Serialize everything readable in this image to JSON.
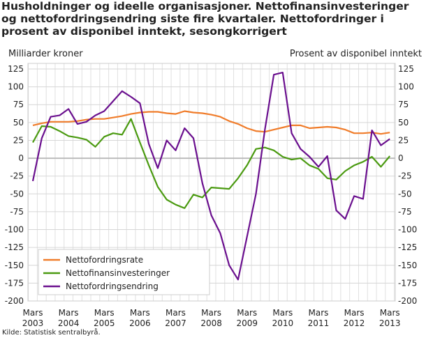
{
  "chart_data": {
    "type": "line",
    "title": "Husholdninger og ideelle organisasjoner. Nettofinansinvesteringer og nettofordringsendring siste fire kvartaler. Nettofordringer i prosent av disponibel inntekt, sesongkorrigert",
    "ylabel_left": "Milliarder kroner",
    "ylabel_right": "Prosent av disponibel inntekt",
    "ylim": [
      -200,
      125
    ],
    "yticks": [
      125,
      100,
      75,
      50,
      25,
      0,
      -25,
      -50,
      -75,
      -100,
      -125,
      -150,
      -175,
      -200
    ],
    "x_tick_labels": [
      [
        "Mars",
        "2003"
      ],
      [
        "Mars",
        "2004"
      ],
      [
        "Mars",
        "2005"
      ],
      [
        "Mars",
        "2006"
      ],
      [
        "Mars",
        "2007"
      ],
      [
        "Mars",
        "2008"
      ],
      [
        "Mars",
        "2009"
      ],
      [
        "Mars",
        "2010"
      ],
      [
        "Mars",
        "2011"
      ],
      [
        "Mars",
        "2012"
      ],
      [
        "Mars",
        "2013"
      ]
    ],
    "x_range": "2003Q1-2013Q1 (quarterly)",
    "grid": true,
    "legend_placement": "bottom-left",
    "series": [
      {
        "name": "Nettofordringsrate",
        "color": "#f07c2a",
        "values": [
          46,
          49,
          51,
          51,
          51,
          52,
          54,
          55,
          55,
          57,
          59,
          62,
          64,
          65,
          65,
          63,
          62,
          66,
          64,
          63,
          61,
          58,
          52,
          48,
          42,
          38,
          37,
          40,
          43,
          46,
          46,
          42,
          43,
          44,
          43,
          40,
          35,
          35,
          36,
          34,
          36
        ]
      },
      {
        "name": "Nettofinansinvesteringer",
        "color": "#4a9a10",
        "values": [
          22,
          45,
          44,
          38,
          31,
          29,
          26,
          16,
          30,
          35,
          33,
          55,
          22,
          -10,
          -40,
          -58,
          -65,
          -70,
          -51,
          -55,
          -41,
          -42,
          -43,
          -28,
          -10,
          13,
          15,
          11,
          2,
          -2,
          0,
          -10,
          -15,
          -28,
          -30,
          -18,
          -10,
          -5,
          2,
          -12,
          3
        ]
      },
      {
        "name": "Nettofordringsendring",
        "color": "#6a0f8e",
        "values": [
          -32,
          28,
          58,
          60,
          69,
          48,
          51,
          60,
          66,
          80,
          94,
          86,
          77,
          20,
          -14,
          25,
          11,
          42,
          28,
          -35,
          -80,
          -105,
          -150,
          -170,
          -110,
          -50,
          40,
          117,
          120,
          35,
          13,
          2,
          -12,
          3,
          -73,
          -85,
          -53,
          -57,
          39,
          18,
          27
        ]
      }
    ]
  },
  "source": "Kilde: Statistisk sentralbyrå."
}
